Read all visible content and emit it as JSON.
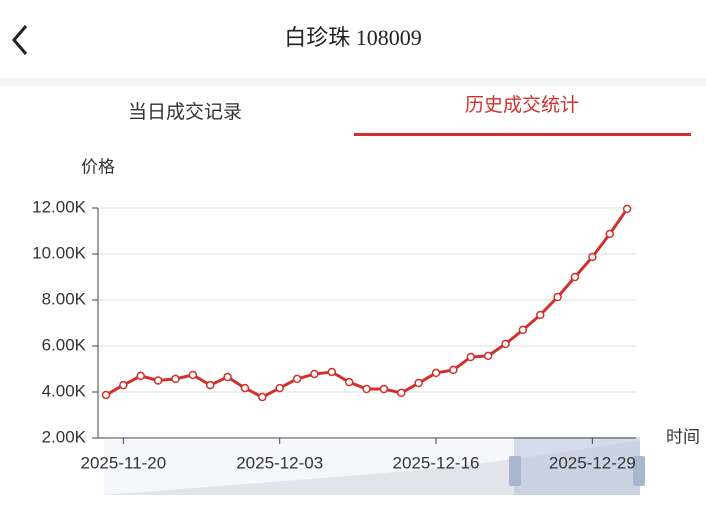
{
  "header": {
    "title": "白珍珠 108009"
  },
  "tabs": [
    "当日成交记录",
    "历史成交统计"
  ],
  "chart_data": {
    "type": "line",
    "ylabel": "价格",
    "xlabel": "时间",
    "categories": [
      null,
      "2025-11-20",
      null,
      null,
      null,
      null,
      null,
      null,
      null,
      null,
      "2025-12-03",
      null,
      null,
      null,
      null,
      null,
      null,
      null,
      null,
      "2025-12-16",
      null,
      null,
      null,
      null,
      null,
      null,
      null,
      null,
      "2025-12-29",
      null,
      null
    ],
    "series": [
      {
        "name": "价格",
        "color": "#d0312d",
        "values": [
          3870,
          4300,
          4700,
          4500,
          4570,
          4740,
          4300,
          4650,
          4170,
          3780,
          4170,
          4570,
          4780,
          4870,
          4430,
          4130,
          4130,
          3960,
          4390,
          4830,
          4960,
          5520,
          5570,
          6090,
          6700,
          7350,
          8130,
          9000,
          9870,
          10870,
          11960
        ]
      }
    ],
    "ylim": [
      2000,
      12000
    ],
    "yticks": [
      {
        "value": 2000,
        "label": "2.00K"
      },
      {
        "value": 4000,
        "label": "4.00K"
      },
      {
        "value": 6000,
        "label": "6.00K"
      },
      {
        "value": 8000,
        "label": "8.00K"
      },
      {
        "value": 10000,
        "label": "10.00K"
      },
      {
        "value": 12000,
        "label": "12.00K"
      }
    ],
    "grid": true
  }
}
